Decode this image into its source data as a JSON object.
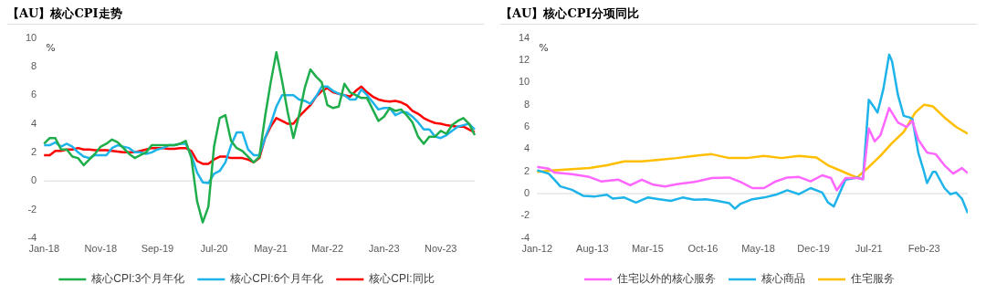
{
  "chart_data": [
    {
      "type": "line",
      "title": "【AU】核心CPI走势",
      "ylabel": "%",
      "categories": [
        "Jan-18",
        null,
        null,
        null,
        null,
        null,
        null,
        null,
        null,
        null,
        "Nov-18",
        null,
        null,
        null,
        null,
        null,
        null,
        null,
        null,
        null,
        "Sep-19",
        null,
        null,
        null,
        null,
        null,
        null,
        null,
        null,
        null,
        "Jul-20",
        null,
        null,
        null,
        null,
        null,
        null,
        null,
        null,
        null,
        "May-21",
        null,
        null,
        null,
        null,
        null,
        null,
        null,
        null,
        null,
        "Mar-22",
        null,
        null,
        null,
        null,
        null,
        null,
        null,
        null,
        null,
        "Jan-23",
        null,
        null,
        null,
        null,
        null,
        null,
        null,
        null,
        null,
        "Nov-23",
        null,
        null,
        null,
        null,
        null,
        null
      ],
      "series": [
        {
          "name": "核心CPI:3个月年化",
          "color": "#1fae4b",
          "values": [
            2.6,
            3.0,
            3.0,
            2.2,
            2.2,
            1.7,
            1.6,
            1.1,
            1.5,
            1.9,
            2.4,
            2.6,
            2.9,
            2.7,
            2.3,
            1.9,
            1.6,
            1.8,
            2.0,
            2.5,
            2.5,
            2.5,
            2.5,
            2.5,
            2.6,
            2.8,
            1.6,
            -1.4,
            -2.9,
            -1.8,
            2.4,
            4.4,
            4.6,
            2.8,
            2.3,
            2.1,
            1.7,
            1.3,
            1.7,
            4.5,
            6.9,
            9.0,
            7.0,
            4.8,
            3.0,
            4.6,
            6.5,
            7.8,
            7.3,
            6.9,
            5.3,
            5.1,
            5.2,
            6.8,
            6.2,
            6.0,
            5.8,
            5.8,
            5.0,
            4.2,
            4.5,
            5.1,
            4.9,
            5.0,
            4.6,
            4.1,
            3.1,
            2.6,
            3.1,
            3.1,
            3.5,
            3.3,
            3.9,
            4.2,
            4.4,
            4.0,
            3.2
          ]
        },
        {
          "name": "核心CPI:6个月年化",
          "color": "#1eb4ea",
          "values": [
            2.5,
            2.5,
            2.7,
            2.4,
            2.6,
            2.4,
            2.0,
            1.7,
            1.6,
            1.8,
            1.8,
            1.8,
            2.3,
            2.5,
            2.4,
            2.3,
            2.0,
            2.0,
            1.9,
            2.0,
            2.2,
            2.3,
            2.5,
            2.5,
            2.6,
            2.6,
            1.8,
            0.6,
            -0.1,
            -0.15,
            0.5,
            0.7,
            1.3,
            2.5,
            3.4,
            3.4,
            2.2,
            1.8,
            1.8,
            3.0,
            4.0,
            5.2,
            6.0,
            6.0,
            6.0,
            5.7,
            5.6,
            5.4,
            5.9,
            6.6,
            6.6,
            6.3,
            6.1,
            6.0,
            5.7,
            5.7,
            6.4,
            6.0,
            5.5,
            5.0,
            5.1,
            5.1,
            4.6,
            4.8,
            4.8,
            4.5,
            4.1,
            3.6,
            3.6,
            3.1,
            3.0,
            3.2,
            3.5,
            3.8,
            3.9,
            4.0,
            3.6
          ]
        },
        {
          "name": "核心CPI:同比",
          "color": "#ff0000",
          "values": [
            1.8,
            1.8,
            2.1,
            2.1,
            2.2,
            2.2,
            2.3,
            2.2,
            2.2,
            2.15,
            2.15,
            2.15,
            2.1,
            2.05,
            2.0,
            2.0,
            2.0,
            2.1,
            2.2,
            2.3,
            2.3,
            2.3,
            2.25,
            2.25,
            2.3,
            2.3,
            2.1,
            1.4,
            1.2,
            1.2,
            1.5,
            1.7,
            1.7,
            1.6,
            1.6,
            1.6,
            1.5,
            1.3,
            1.6,
            3.0,
            3.8,
            4.4,
            4.2,
            4.0,
            4.0,
            4.5,
            4.9,
            5.3,
            5.9,
            6.3,
            6.5,
            6.2,
            6.1,
            6.0,
            5.9,
            6.3,
            6.6,
            6.2,
            5.9,
            5.7,
            5.6,
            5.55,
            5.6,
            5.5,
            5.3,
            4.9,
            4.7,
            4.4,
            4.2,
            4.05,
            4.0,
            3.9,
            3.85,
            3.8,
            3.8,
            3.6,
            3.4
          ]
        }
      ],
      "ylim": [
        -4,
        10
      ],
      "yticks": [
        -4,
        -2,
        0,
        2,
        4,
        6,
        8,
        10
      ],
      "ref_lines": [
        {
          "axis": "y",
          "value": 0,
          "color": "#d9d9d9"
        }
      ],
      "legend": "bottom"
    },
    {
      "type": "line",
      "title": "【AU】核心CPI分项同比",
      "ylabel": "%",
      "series": [
        {
          "name": "住宅以外的核心服务",
          "color": "#ff66ff",
          "x": [
            "2012-01",
            "2012-05",
            "2012-07",
            "2013-01",
            "2013-07",
            "2013-11",
            "2014-05",
            "2014-09",
            "2015-01",
            "2015-05",
            "2015-09",
            "2016-01",
            "2016-07",
            "2017-01",
            "2017-07",
            "2017-11",
            "2018-03",
            "2018-07",
            "2018-11",
            "2019-03",
            "2019-07",
            "2019-11",
            "2020-03",
            "2020-06",
            "2020-08",
            "2020-11",
            "2021-03",
            "2021-05",
            "2021-07",
            "2021-09",
            "2021-11",
            "2022-02",
            "2022-05",
            "2022-08",
            "2022-10",
            "2022-12",
            "2023-03",
            "2023-06",
            "2023-09",
            "2023-12",
            "2024-03",
            "2024-05"
          ],
          "values": [
            2.4,
            2.25,
            1.9,
            1.75,
            1.5,
            1.1,
            1.25,
            0.75,
            1.25,
            0.8,
            0.65,
            0.85,
            1.05,
            1.4,
            1.45,
            1.05,
            0.5,
            0.5,
            1.1,
            1.45,
            1.5,
            1.1,
            1.65,
            1.4,
            0.3,
            1.4,
            1.4,
            1.3,
            5.85,
            4.7,
            5.25,
            7.7,
            6.4,
            6.0,
            6.55,
            4.85,
            3.7,
            3.55,
            2.55,
            1.8,
            2.3,
            1.85
          ]
        },
        {
          "name": "核心商品",
          "color": "#1eb4ea",
          "x": [
            "2012-01",
            "2012-05",
            "2012-07",
            "2012-09",
            "2013-01",
            "2013-05",
            "2013-09",
            "2014-01",
            "2014-03",
            "2014-07",
            "2014-11",
            "2015-03",
            "2015-07",
            "2015-11",
            "2016-03",
            "2016-07",
            "2016-11",
            "2017-03",
            "2017-07",
            "2017-09",
            "2017-11",
            "2018-03",
            "2018-07",
            "2018-11",
            "2019-03",
            "2019-07",
            "2019-11",
            "2020-03",
            "2020-05",
            "2020-07",
            "2020-11",
            "2021-03",
            "2021-05",
            "2021-07",
            "2021-09",
            "2021-10",
            "2021-12",
            "2022-02",
            "2022-03",
            "2022-05",
            "2022-07",
            "2022-09",
            "2022-10",
            "2022-12",
            "2023-02",
            "2023-03",
            "2023-05",
            "2023-06",
            "2023-09",
            "2023-11",
            "2024-01",
            "2024-03",
            "2024-05"
          ],
          "values": [
            2.1,
            1.8,
            1.25,
            0.65,
            0.35,
            -0.2,
            -0.25,
            -0.1,
            -0.45,
            -0.35,
            -0.8,
            -0.35,
            -0.5,
            -0.65,
            -0.35,
            -0.55,
            -0.5,
            -0.65,
            -0.85,
            -1.35,
            -0.9,
            -0.5,
            -0.35,
            -0.1,
            0.3,
            -0.05,
            0.5,
            0.1,
            -0.8,
            -1.15,
            1.25,
            1.45,
            1.3,
            8.45,
            7.7,
            7.3,
            9.4,
            12.5,
            11.9,
            8.9,
            7.0,
            6.85,
            6.7,
            3.7,
            1.95,
            0.95,
            1.95,
            1.95,
            0.5,
            -0.05,
            0.1,
            -0.45,
            -1.75
          ]
        },
        {
          "name": "住宅服务",
          "color": "#ffbf00",
          "x": [
            "2012-01",
            "2012-07",
            "2013-01",
            "2013-07",
            "2014-01",
            "2014-07",
            "2015-01",
            "2015-07",
            "2016-01",
            "2016-07",
            "2017-01",
            "2017-07",
            "2018-01",
            "2018-07",
            "2019-01",
            "2019-07",
            "2020-01",
            "2020-05",
            "2020-09",
            "2021-01",
            "2021-03",
            "2021-07",
            "2021-11",
            "2022-03",
            "2022-07",
            "2022-11",
            "2023-02",
            "2023-05",
            "2023-09",
            "2024-01",
            "2024-05"
          ],
          "values": [
            1.95,
            2.1,
            2.2,
            2.3,
            2.55,
            2.9,
            2.9,
            3.05,
            3.2,
            3.4,
            3.55,
            3.2,
            3.2,
            3.4,
            3.2,
            3.4,
            3.25,
            2.55,
            2.1,
            1.65,
            1.45,
            2.4,
            3.4,
            4.55,
            5.55,
            7.3,
            8.0,
            7.85,
            6.85,
            6.0,
            5.4
          ]
        }
      ],
      "xlim": [
        "2012-01",
        "2024-05"
      ],
      "xticks": [
        {
          "value": "2012-01",
          "label": "Jan-12"
        },
        {
          "value": "2013-08",
          "label": "Aug-13"
        },
        {
          "value": "2015-03",
          "label": "Mar-15"
        },
        {
          "value": "2016-10",
          "label": "Oct-16"
        },
        {
          "value": "2018-05",
          "label": "May-18"
        },
        {
          "value": "2019-12",
          "label": "Dec-19"
        },
        {
          "value": "2021-07",
          "label": "Jul-21"
        },
        {
          "value": "2023-02",
          "label": "Feb-23"
        }
      ],
      "ylim": [
        -4,
        14
      ],
      "yticks": [
        -4,
        -2,
        0,
        2,
        4,
        6,
        8,
        10,
        12,
        14
      ],
      "ref_lines": [
        {
          "axis": "y",
          "value": 0,
          "color": "#d9d9d9"
        }
      ],
      "legend": "bottom"
    }
  ]
}
